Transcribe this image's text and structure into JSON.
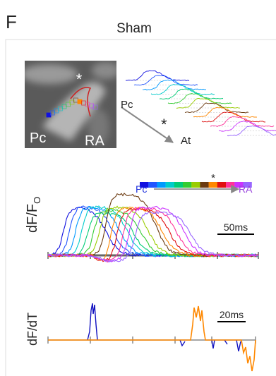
{
  "panel": {
    "label": "F",
    "title": "Sham"
  },
  "image": {
    "star": "*",
    "left_label": "Pc",
    "right_label": "RA"
  },
  "stack": {
    "left_label": "Pc",
    "bottom_label": "At",
    "star": "*"
  },
  "colorbar": {
    "star": "*",
    "left_label": "Pc",
    "right_label": "RA"
  },
  "upper_plot": {
    "ylabel": "dF/F",
    "ylabel_sub": "O",
    "scale": "50ms"
  },
  "lower_plot": {
    "ylabel": "dF/dT",
    "scale": "20ms"
  }
}
